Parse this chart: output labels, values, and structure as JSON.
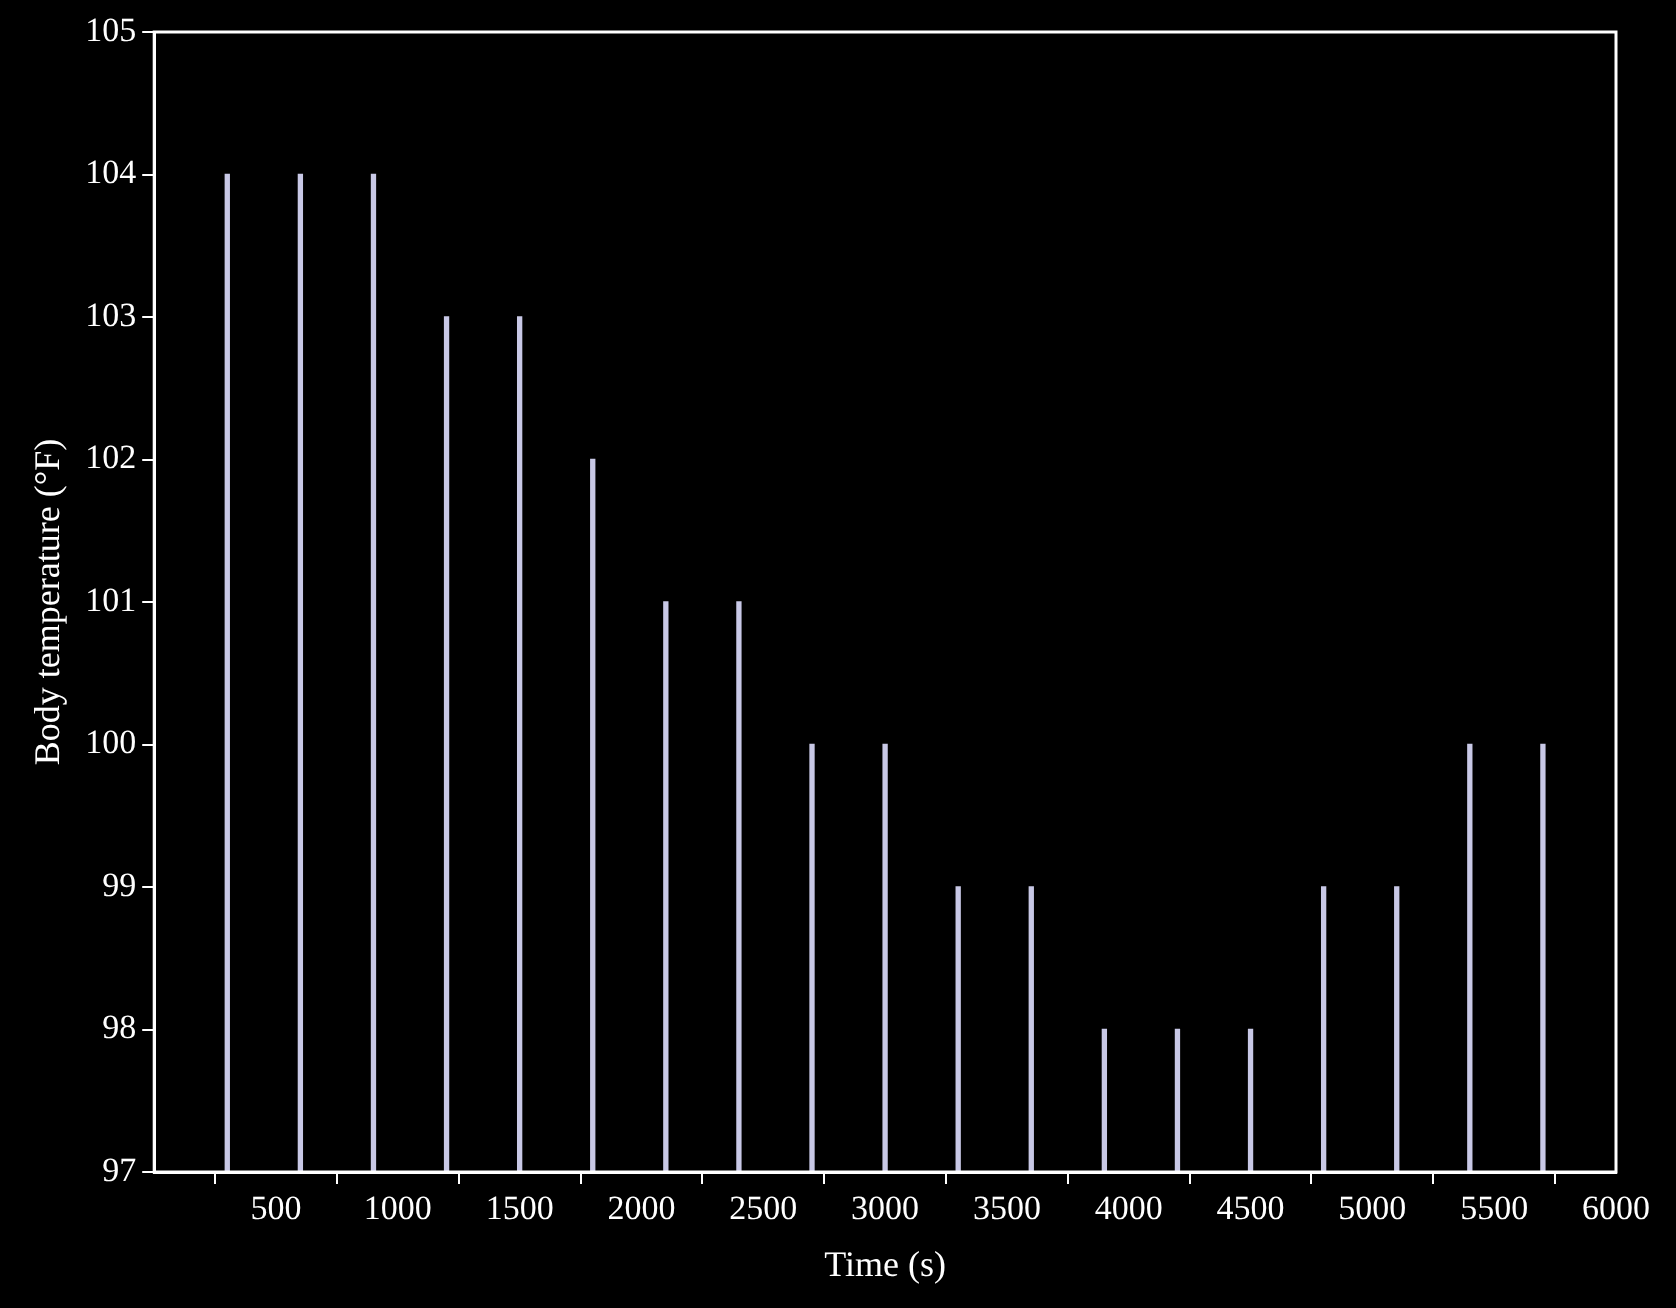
{
  "chart_data": {
    "type": "bar",
    "xlabel": "Time (s)",
    "ylabel": "Body temperature (°F)",
    "x": [
      300,
      600,
      900,
      1200,
      1500,
      1800,
      2100,
      2400,
      2700,
      3000,
      3300,
      3600,
      3900,
      4200,
      4500,
      4800,
      5100,
      5400,
      5700
    ],
    "values": [
      104,
      104,
      104,
      103,
      103,
      102,
      101,
      101,
      100,
      100,
      99,
      99,
      98,
      98,
      98,
      99,
      99,
      100,
      100
    ],
    "color": "#c8c8e6",
    "xlim": [
      0,
      6000
    ],
    "xticks": [
      500,
      1000,
      1500,
      2000,
      2500,
      3000,
      3500,
      4000,
      4500,
      5000,
      5500,
      6000
    ],
    "ylim": [
      97,
      105
    ],
    "yticks": [
      97,
      98,
      99,
      100,
      101,
      102,
      103,
      104,
      105
    ],
    "grid": false,
    "legend": false
  }
}
